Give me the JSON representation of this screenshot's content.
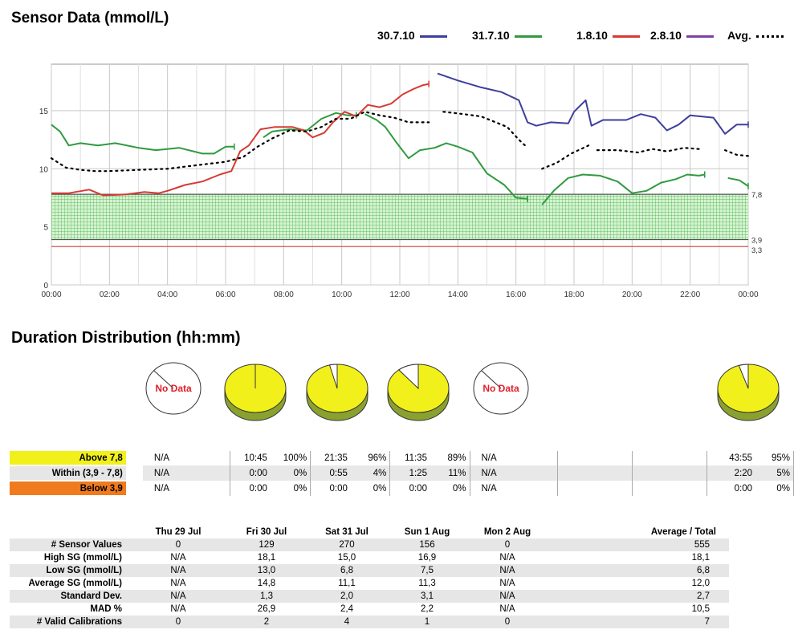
{
  "chart_data": {
    "type": "line",
    "title": "Sensor Data (mmol/L)",
    "x_ticks": [
      "00:00",
      "02:00",
      "04:00",
      "06:00",
      "08:00",
      "10:00",
      "12:00",
      "14:00",
      "16:00",
      "18:00",
      "20:00",
      "22:00",
      "00:00"
    ],
    "y_ticks": [
      "0",
      "5",
      "10",
      "15"
    ],
    "ylim": [
      0,
      19
    ],
    "xlim_hours": [
      0,
      24
    ],
    "target_band": {
      "low": 3.9,
      "high": 7.8,
      "low_label": "3,9",
      "high_label": "7,8",
      "color": "#5ec25e"
    },
    "limit_line": {
      "value": 3.3,
      "label": "3,3",
      "color": "#d9534f"
    },
    "legend": [
      {
        "name": "30.7.10",
        "color": "#3d3f9c",
        "style": "solid"
      },
      {
        "name": "31.7.10",
        "color": "#2f9a3f",
        "style": "solid"
      },
      {
        "name": "1.8.10",
        "color": "#d63a32",
        "style": "solid"
      },
      {
        "name": "2.8.10",
        "color": "#7f3fa4",
        "style": "solid"
      },
      {
        "name": "Avg.",
        "color": "#000000",
        "style": "dotted"
      }
    ],
    "series": [
      {
        "name": "30.7.10",
        "color": "#3d3f9c",
        "segments": [
          [
            [
              13.3,
              18.2
            ],
            [
              14.0,
              17.6
            ],
            [
              14.8,
              17.0
            ],
            [
              15.5,
              16.6
            ],
            [
              16.1,
              15.9
            ],
            [
              16.4,
              14.0
            ],
            [
              16.7,
              13.7
            ],
            [
              17.2,
              14.0
            ],
            [
              17.8,
              13.9
            ],
            [
              18.0,
              14.9
            ],
            [
              18.4,
              15.9
            ],
            [
              18.6,
              13.7
            ],
            [
              19.0,
              14.2
            ],
            [
              19.8,
              14.2
            ],
            [
              20.3,
              14.7
            ],
            [
              20.8,
              14.4
            ],
            [
              21.2,
              13.3
            ],
            [
              21.6,
              13.8
            ],
            [
              22.0,
              14.6
            ],
            [
              22.8,
              14.4
            ],
            [
              23.2,
              13.0
            ],
            [
              23.6,
              13.8
            ],
            [
              24.0,
              13.8
            ]
          ]
        ]
      },
      {
        "name": "31.7.10",
        "color": "#2f9a3f",
        "segments": [
          [
            [
              0.0,
              13.8
            ],
            [
              0.3,
              13.2
            ],
            [
              0.6,
              12.0
            ],
            [
              1.0,
              12.2
            ],
            [
              1.6,
              12.0
            ],
            [
              2.2,
              12.2
            ],
            [
              3.0,
              11.8
            ],
            [
              3.6,
              11.6
            ],
            [
              4.4,
              11.8
            ],
            [
              5.2,
              11.3
            ],
            [
              5.6,
              11.3
            ],
            [
              6.0,
              11.9
            ],
            [
              6.3,
              11.9
            ]
          ],
          [
            [
              7.3,
              12.7
            ],
            [
              7.6,
              13.2
            ],
            [
              8.2,
              13.4
            ],
            [
              8.8,
              13.3
            ],
            [
              9.3,
              14.3
            ],
            [
              9.8,
              14.8
            ],
            [
              10.2,
              14.6
            ],
            [
              10.5,
              14.6
            ]
          ],
          [
            [
              10.8,
              14.7
            ],
            [
              11.2,
              14.2
            ],
            [
              11.5,
              13.6
            ],
            [
              11.9,
              12.2
            ],
            [
              12.3,
              10.9
            ],
            [
              12.7,
              11.6
            ],
            [
              13.2,
              11.8
            ],
            [
              13.6,
              12.2
            ],
            [
              14.0,
              11.9
            ],
            [
              14.5,
              11.4
            ],
            [
              15.0,
              9.6
            ],
            [
              15.6,
              8.6
            ],
            [
              16.0,
              7.5
            ],
            [
              16.4,
              7.4
            ]
          ],
          [
            [
              16.9,
              6.9
            ],
            [
              17.3,
              8.1
            ],
            [
              17.8,
              9.2
            ],
            [
              18.3,
              9.5
            ],
            [
              18.9,
              9.4
            ],
            [
              19.5,
              8.9
            ],
            [
              20.0,
              7.9
            ],
            [
              20.5,
              8.1
            ],
            [
              21.0,
              8.8
            ],
            [
              21.5,
              9.1
            ],
            [
              21.9,
              9.5
            ],
            [
              22.3,
              9.4
            ],
            [
              22.5,
              9.5
            ]
          ],
          [
            [
              23.3,
              9.2
            ],
            [
              23.7,
              9.0
            ],
            [
              24.0,
              8.5
            ]
          ]
        ]
      },
      {
        "name": "1.8.10",
        "color": "#d63a32",
        "segments": [
          [
            [
              0.0,
              7.9
            ],
            [
              0.6,
              7.9
            ],
            [
              1.3,
              8.2
            ],
            [
              1.8,
              7.7
            ],
            [
              2.6,
              7.8
            ],
            [
              3.2,
              8.0
            ],
            [
              3.7,
              7.9
            ],
            [
              4.0,
              8.1
            ],
            [
              4.6,
              8.6
            ],
            [
              5.2,
              8.9
            ],
            [
              5.8,
              9.5
            ],
            [
              6.2,
              9.8
            ],
            [
              6.5,
              11.5
            ],
            [
              6.8,
              12.0
            ],
            [
              7.2,
              13.4
            ],
            [
              7.7,
              13.6
            ],
            [
              8.3,
              13.6
            ],
            [
              8.7,
              13.3
            ],
            [
              9.0,
              12.7
            ],
            [
              9.4,
              13.1
            ],
            [
              9.7,
              14.0
            ],
            [
              10.1,
              14.9
            ],
            [
              10.5,
              14.5
            ],
            [
              10.9,
              15.5
            ],
            [
              11.3,
              15.3
            ],
            [
              11.7,
              15.6
            ],
            [
              12.1,
              16.4
            ],
            [
              12.5,
              16.9
            ],
            [
              12.8,
              17.2
            ],
            [
              13.0,
              17.3
            ]
          ]
        ]
      },
      {
        "name": "Avg.",
        "color": "#000000",
        "dotted": true,
        "segments": [
          [
            [
              0.0,
              10.9
            ],
            [
              0.5,
              10.1
            ],
            [
              1.0,
              9.9
            ],
            [
              1.5,
              9.8
            ],
            [
              2.0,
              9.8
            ],
            [
              3.0,
              9.9
            ],
            [
              4.0,
              10.0
            ],
            [
              5.0,
              10.3
            ],
            [
              6.0,
              10.6
            ],
            [
              6.6,
              11.0
            ],
            [
              7.1,
              11.9
            ],
            [
              7.6,
              12.6
            ],
            [
              8.2,
              13.3
            ],
            [
              8.8,
              13.2
            ],
            [
              9.3,
              13.6
            ],
            [
              9.8,
              14.3
            ],
            [
              10.3,
              14.3
            ],
            [
              10.8,
              14.9
            ],
            [
              11.3,
              14.6
            ],
            [
              11.8,
              14.4
            ],
            [
              12.3,
              14.0
            ],
            [
              13.0,
              14.0
            ]
          ],
          [
            [
              13.5,
              14.9
            ],
            [
              14.2,
              14.7
            ],
            [
              14.8,
              14.5
            ],
            [
              15.2,
              14.1
            ],
            [
              15.7,
              13.6
            ],
            [
              16.1,
              12.5
            ],
            [
              16.4,
              11.8
            ]
          ],
          [
            [
              16.9,
              10.0
            ],
            [
              17.4,
              10.5
            ],
            [
              17.9,
              11.3
            ],
            [
              18.5,
              12.0
            ]
          ],
          [
            [
              18.8,
              11.6
            ],
            [
              19.5,
              11.6
            ],
            [
              20.2,
              11.4
            ],
            [
              20.7,
              11.7
            ],
            [
              21.2,
              11.5
            ],
            [
              21.8,
              11.8
            ],
            [
              22.3,
              11.7
            ]
          ],
          [
            [
              23.2,
              11.6
            ],
            [
              23.6,
              11.2
            ],
            [
              24.0,
              11.1
            ]
          ]
        ]
      }
    ],
    "pies": [
      {
        "no_data": true,
        "label": "No Data"
      },
      {
        "no_data": false,
        "above": 100,
        "within": 0,
        "below": 0
      },
      {
        "no_data": false,
        "above": 96,
        "within": 4,
        "below": 0
      },
      {
        "no_data": false,
        "above": 89,
        "within": 11,
        "below": 0
      },
      {
        "no_data": true,
        "label": "No Data"
      },
      {
        "no_data": false,
        "above": 95,
        "within": 5,
        "below": 0
      }
    ]
  },
  "duration": {
    "title": "Duration Distribution (hh:mm)",
    "rows": [
      {
        "label": "Above 7,8",
        "color": "#f2f01b",
        "cells": [
          [
            "N/A",
            ""
          ],
          [
            "10:45",
            "100%"
          ],
          [
            "21:35",
            "96%"
          ],
          [
            "11:35",
            "89%"
          ],
          [
            "N/A",
            ""
          ],
          [
            "",
            ""
          ],
          [
            "",
            ""
          ],
          [
            "43:55",
            "95%"
          ]
        ]
      },
      {
        "label": "Within (3,9 - 7,8)",
        "color": "#e6e6e6",
        "cells": [
          [
            "N/A",
            ""
          ],
          [
            "0:00",
            "0%"
          ],
          [
            "0:55",
            "4%"
          ],
          [
            "1:25",
            "11%"
          ],
          [
            "N/A",
            ""
          ],
          [
            "",
            ""
          ],
          [
            "",
            ""
          ],
          [
            "2:20",
            "5%"
          ]
        ]
      },
      {
        "label": "Below 3,9",
        "color": "#f07a1e",
        "cells": [
          [
            "N/A",
            ""
          ],
          [
            "0:00",
            "0%"
          ],
          [
            "0:00",
            "0%"
          ],
          [
            "0:00",
            "0%"
          ],
          [
            "N/A",
            ""
          ],
          [
            "",
            ""
          ],
          [
            "",
            ""
          ],
          [
            "0:00",
            "0%"
          ]
        ]
      }
    ]
  },
  "stats": {
    "headers": [
      "Thu 29 Jul",
      "Fri 30 Jul",
      "Sat 31 Jul",
      "Sun 1 Aug",
      "Mon 2 Aug",
      "Average / Total"
    ],
    "rows": [
      {
        "label": "# Sensor Values",
        "values": [
          "0",
          "129",
          "270",
          "156",
          "0",
          "555"
        ]
      },
      {
        "label": "High SG (mmol/L)",
        "values": [
          "N/A",
          "18,1",
          "15,0",
          "16,9",
          "N/A",
          "18,1"
        ]
      },
      {
        "label": "Low SG (mmol/L)",
        "values": [
          "N/A",
          "13,0",
          "6,8",
          "7,5",
          "N/A",
          "6,8"
        ]
      },
      {
        "label": "Average SG (mmol/L)",
        "values": [
          "N/A",
          "14,8",
          "11,1",
          "11,3",
          "N/A",
          "12,0"
        ]
      },
      {
        "label": "Standard Dev.",
        "values": [
          "N/A",
          "1,3",
          "2,0",
          "3,1",
          "N/A",
          "2,7"
        ]
      },
      {
        "label": "MAD %",
        "values": [
          "N/A",
          "26,9",
          "2,4",
          "2,2",
          "N/A",
          "10,5"
        ]
      },
      {
        "label": "# Valid Calibrations",
        "values": [
          "0",
          "2",
          "4",
          "1",
          "0",
          "7"
        ]
      }
    ]
  }
}
